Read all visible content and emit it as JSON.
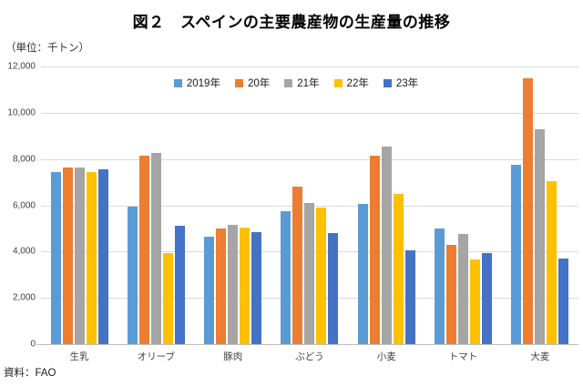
{
  "title": "図２　スペインの主要農産物の生産量の推移",
  "unit_label": "（単位：千トン）",
  "source": "資料：FAO",
  "chart_data": {
    "type": "bar",
    "title": "図２　スペインの主要農産物の生産量の推移",
    "unit": "千トン",
    "categories": [
      "生乳",
      "オリーブ",
      "豚肉",
      "ぶどう",
      "小麦",
      "トマト",
      "大麦"
    ],
    "series": [
      {
        "name": "2019年",
        "color": "#5B9BD5",
        "values": [
          7450,
          5950,
          4650,
          5750,
          6050,
          5000,
          7750
        ]
      },
      {
        "name": "20年",
        "color": "#ED7D31",
        "values": [
          7650,
          8150,
          5000,
          6800,
          8150,
          4300,
          11500
        ]
      },
      {
        "name": "21年",
        "color": "#A5A5A5",
        "values": [
          7650,
          8250,
          5150,
          6100,
          8550,
          4750,
          9300
        ]
      },
      {
        "name": "22年",
        "color": "#FFC000",
        "values": [
          7450,
          3950,
          5050,
          5900,
          6500,
          3650,
          7050
        ]
      },
      {
        "name": "23年",
        "color": "#4472C4",
        "values": [
          7550,
          5100,
          4850,
          4800,
          4050,
          3950,
          3700
        ]
      }
    ],
    "ylim": [
      0,
      12000
    ],
    "ytick_step": 2000,
    "grid": true,
    "gridline_color": "#d9d9d9",
    "legend_position": "top-center",
    "source": "資料：FAO"
  }
}
